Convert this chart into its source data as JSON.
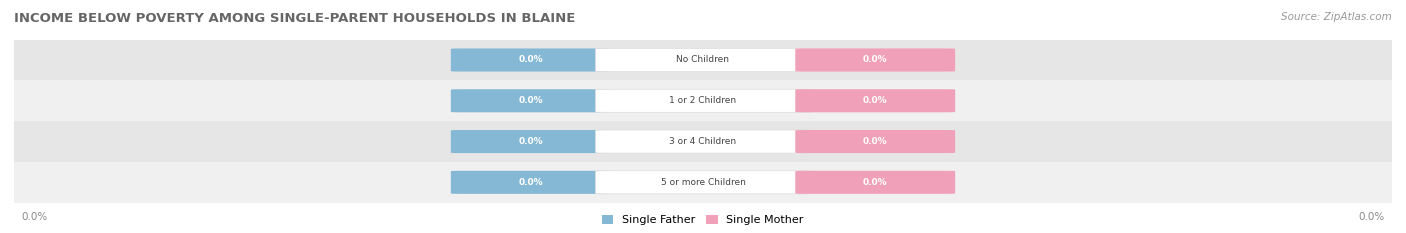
{
  "title": "INCOME BELOW POVERTY AMONG SINGLE-PARENT HOUSEHOLDS IN BLAINE",
  "source": "Source: ZipAtlas.com",
  "categories": [
    "No Children",
    "1 or 2 Children",
    "3 or 4 Children",
    "5 or more Children"
  ],
  "father_values": [
    0.0,
    0.0,
    0.0,
    0.0
  ],
  "mother_values": [
    0.0,
    0.0,
    0.0,
    0.0
  ],
  "father_color": "#85b8d4",
  "mother_color": "#f0a0b8",
  "row_bg_even": "#f0f0f0",
  "row_bg_odd": "#e6e6e6",
  "title_fontsize": 9.5,
  "source_fontsize": 7.5,
  "value_label": "0.0%",
  "tick_label": "0.0%",
  "figsize": [
    14.06,
    2.33
  ],
  "dpi": 100
}
